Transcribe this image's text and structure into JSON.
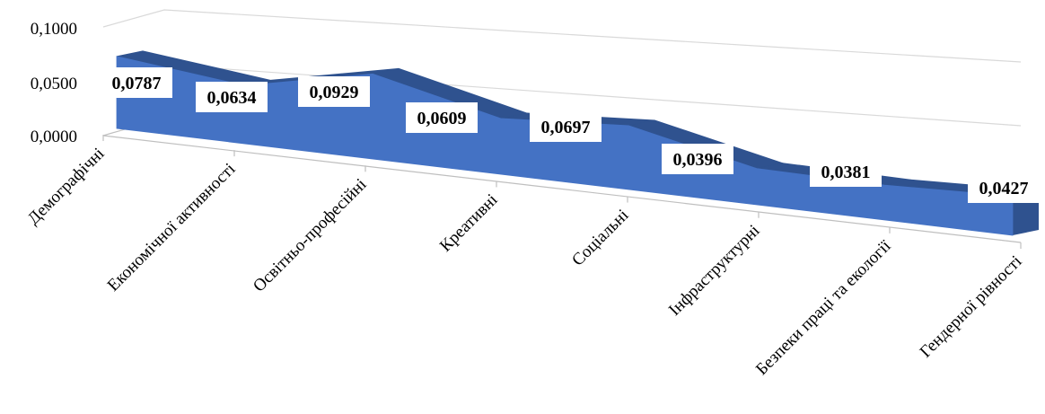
{
  "chart_data": {
    "type": "area",
    "view": "3d",
    "categories": [
      "Демографічні",
      "Економічної активності",
      "Освітньо-професійні",
      "Креативні",
      "Соціальні",
      "Інфраструктурні",
      "Безпеки праці та екології",
      "Гендерної рівності"
    ],
    "series": [
      {
        "values": [
          0.0787,
          0.0634,
          0.0929,
          0.0609,
          0.0697,
          0.0396,
          0.0381,
          0.0427
        ],
        "labels": [
          "0,0787",
          "0,0634",
          "0,0929",
          "0,0609",
          "0,0697",
          "0,0396",
          "0,0381",
          "0,0427"
        ]
      }
    ],
    "y_ticks": [
      "0,1000",
      "0,0500",
      "0,0000"
    ],
    "ylim": [
      0,
      0.1
    ],
    "title": "",
    "xlabel": "",
    "ylabel": "",
    "grid": true,
    "legend": "none",
    "colors": {
      "front": "#4472c4",
      "top": "#2f528f",
      "grid": "#d9d9d9",
      "axis": "#bfbfbf"
    }
  }
}
